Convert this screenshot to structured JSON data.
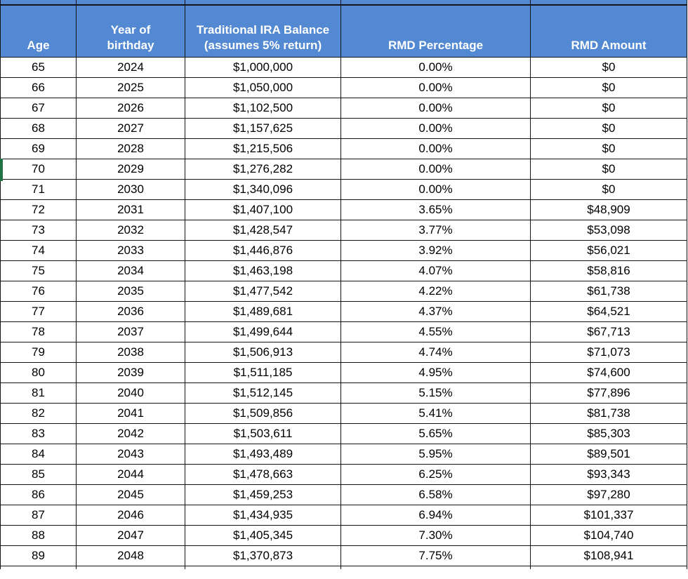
{
  "app": {
    "title": "RMD projection spreadsheet"
  },
  "colors": {
    "header_bg": "#5289D2",
    "header_text": "#FFFFFF",
    "grid_border": "#141414",
    "cell_bg": "#FFFFFF",
    "cell_text": "#000000",
    "selection_green": "#217346"
  },
  "selection": {
    "indicator_row_age": 70
  },
  "table": {
    "columns": [
      {
        "key": "age",
        "label": "Age"
      },
      {
        "key": "year",
        "label": "Year of\nbirthday"
      },
      {
        "key": "balance",
        "label": "Traditional IRA Balance\n(assumes 5% return)"
      },
      {
        "key": "pct",
        "label": "RMD Percentage"
      },
      {
        "key": "amt",
        "label": "RMD Amount"
      }
    ],
    "rows": [
      [
        "65",
        "2024",
        "$1,000,000",
        "0.00%",
        "$0"
      ],
      [
        "66",
        "2025",
        "$1,050,000",
        "0.00%",
        "$0"
      ],
      [
        "67",
        "2026",
        "$1,102,500",
        "0.00%",
        "$0"
      ],
      [
        "68",
        "2027",
        "$1,157,625",
        "0.00%",
        "$0"
      ],
      [
        "69",
        "2028",
        "$1,215,506",
        "0.00%",
        "$0"
      ],
      [
        "70",
        "2029",
        "$1,276,282",
        "0.00%",
        "$0"
      ],
      [
        "71",
        "2030",
        "$1,340,096",
        "0.00%",
        "$0"
      ],
      [
        "72",
        "2031",
        "$1,407,100",
        "3.65%",
        "$48,909"
      ],
      [
        "73",
        "2032",
        "$1,428,547",
        "3.77%",
        "$53,098"
      ],
      [
        "74",
        "2033",
        "$1,446,876",
        "3.92%",
        "$56,021"
      ],
      [
        "75",
        "2034",
        "$1,463,198",
        "4.07%",
        "$58,816"
      ],
      [
        "76",
        "2035",
        "$1,477,542",
        "4.22%",
        "$61,738"
      ],
      [
        "77",
        "2036",
        "$1,489,681",
        "4.37%",
        "$64,521"
      ],
      [
        "78",
        "2037",
        "$1,499,644",
        "4.55%",
        "$67,713"
      ],
      [
        "79",
        "2038",
        "$1,506,913",
        "4.74%",
        "$71,073"
      ],
      [
        "80",
        "2039",
        "$1,511,185",
        "4.95%",
        "$74,600"
      ],
      [
        "81",
        "2040",
        "$1,512,145",
        "5.15%",
        "$77,896"
      ],
      [
        "82",
        "2041",
        "$1,509,856",
        "5.41%",
        "$81,738"
      ],
      [
        "83",
        "2042",
        "$1,503,611",
        "5.65%",
        "$85,303"
      ],
      [
        "84",
        "2043",
        "$1,493,489",
        "5.95%",
        "$89,501"
      ],
      [
        "85",
        "2044",
        "$1,478,663",
        "6.25%",
        "$93,343"
      ],
      [
        "86",
        "2045",
        "$1,459,253",
        "6.58%",
        "$97,280"
      ],
      [
        "87",
        "2046",
        "$1,434,935",
        "6.94%",
        "$101,337"
      ],
      [
        "88",
        "2047",
        "$1,405,345",
        "7.30%",
        "$104,740"
      ],
      [
        "89",
        "2048",
        "$1,370,873",
        "7.75%",
        "$108,941"
      ]
    ]
  }
}
